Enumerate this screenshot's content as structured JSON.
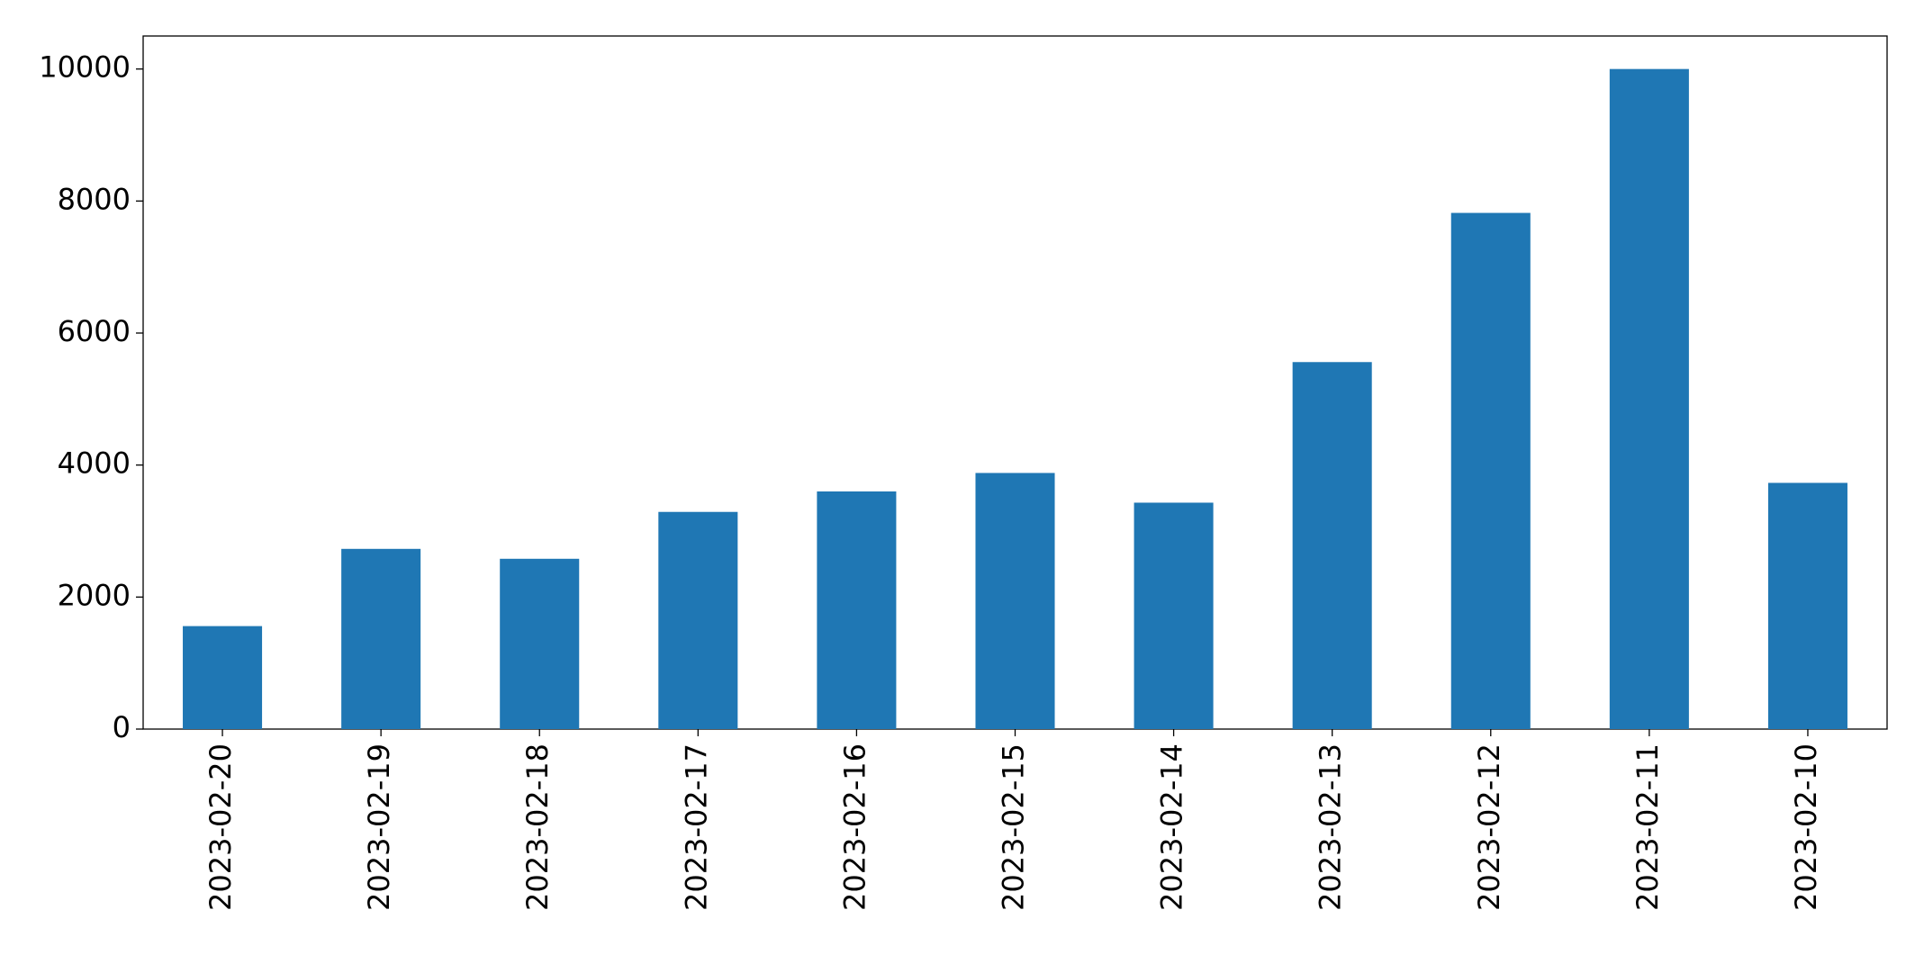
{
  "chart_data": {
    "type": "bar",
    "categories": [
      "2023-02-20",
      "2023-02-19",
      "2023-02-18",
      "2023-02-17",
      "2023-02-16",
      "2023-02-15",
      "2023-02-14",
      "2023-02-13",
      "2023-02-12",
      "2023-02-11",
      "2023-02-10"
    ],
    "values": [
      1560,
      2730,
      2580,
      3290,
      3600,
      3880,
      3430,
      5560,
      7820,
      10000,
      3730
    ],
    "color": "#1f77b4",
    "ylim": [
      0,
      10500
    ],
    "yticks": [
      0,
      2000,
      4000,
      6000,
      8000,
      10000
    ],
    "grid": false
  }
}
